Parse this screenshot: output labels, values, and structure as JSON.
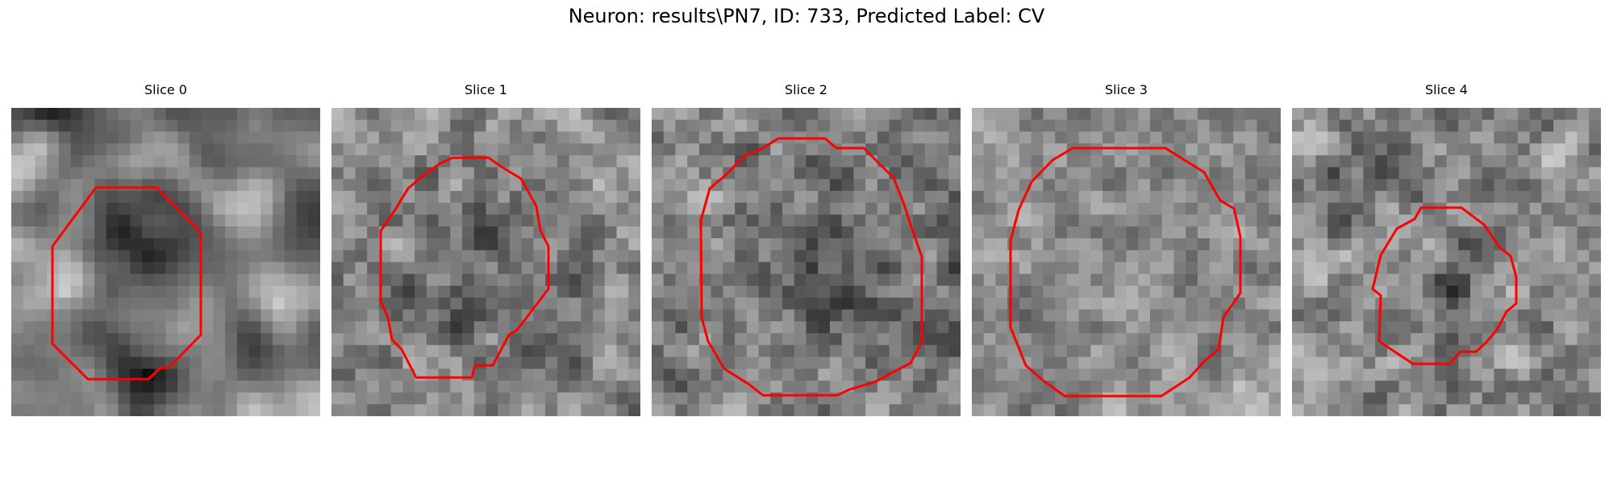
{
  "figure": {
    "title": "Neuron: results\\PN7, ID: 733, Predicted Label: CV",
    "panels": [
      {
        "title": "Slice 0"
      },
      {
        "title": "Slice 1"
      },
      {
        "title": "Slice 2"
      },
      {
        "title": "Slice 3"
      },
      {
        "title": "Slice 4"
      }
    ],
    "contour_color": "#ff0000",
    "colormap": "gray"
  }
}
